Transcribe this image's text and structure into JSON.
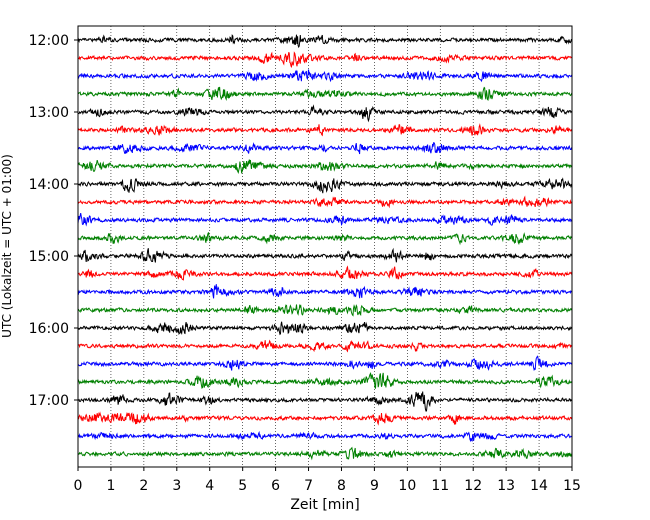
{
  "chart_data": {
    "type": "line",
    "title": "",
    "xlabel": "Zeit  [min]",
    "ylabel": "UTC (Lokalzeit = UTC + 01:00)",
    "xlim": [
      0,
      15
    ],
    "x_ticks": [
      "0",
      "1",
      "2",
      "3",
      "4",
      "5",
      "6",
      "7",
      "8",
      "9",
      "10",
      "11",
      "12",
      "13",
      "14",
      "15"
    ],
    "y_ticks": [
      "12:00",
      "13:00",
      "14:00",
      "15:00",
      "16:00",
      "17:00"
    ],
    "grid": "vertical dotted at each minute",
    "trace_colors": [
      "#000000",
      "#ff0000",
      "#0000ff",
      "#008000"
    ],
    "traces": [
      {
        "start": "12:00"
      },
      {
        "start": "12:15"
      },
      {
        "start": "12:30"
      },
      {
        "start": "12:45"
      },
      {
        "start": "13:00"
      },
      {
        "start": "13:15"
      },
      {
        "start": "13:30"
      },
      {
        "start": "13:45"
      },
      {
        "start": "14:00"
      },
      {
        "start": "14:15"
      },
      {
        "start": "14:30"
      },
      {
        "start": "14:45"
      },
      {
        "start": "15:00"
      },
      {
        "start": "15:15"
      },
      {
        "start": "15:30"
      },
      {
        "start": "15:45"
      },
      {
        "start": "16:00"
      },
      {
        "start": "16:15"
      },
      {
        "start": "16:30"
      },
      {
        "start": "16:45"
      },
      {
        "start": "17:00"
      },
      {
        "start": "17:15"
      },
      {
        "start": "17:30"
      },
      {
        "start": "17:45"
      }
    ]
  }
}
